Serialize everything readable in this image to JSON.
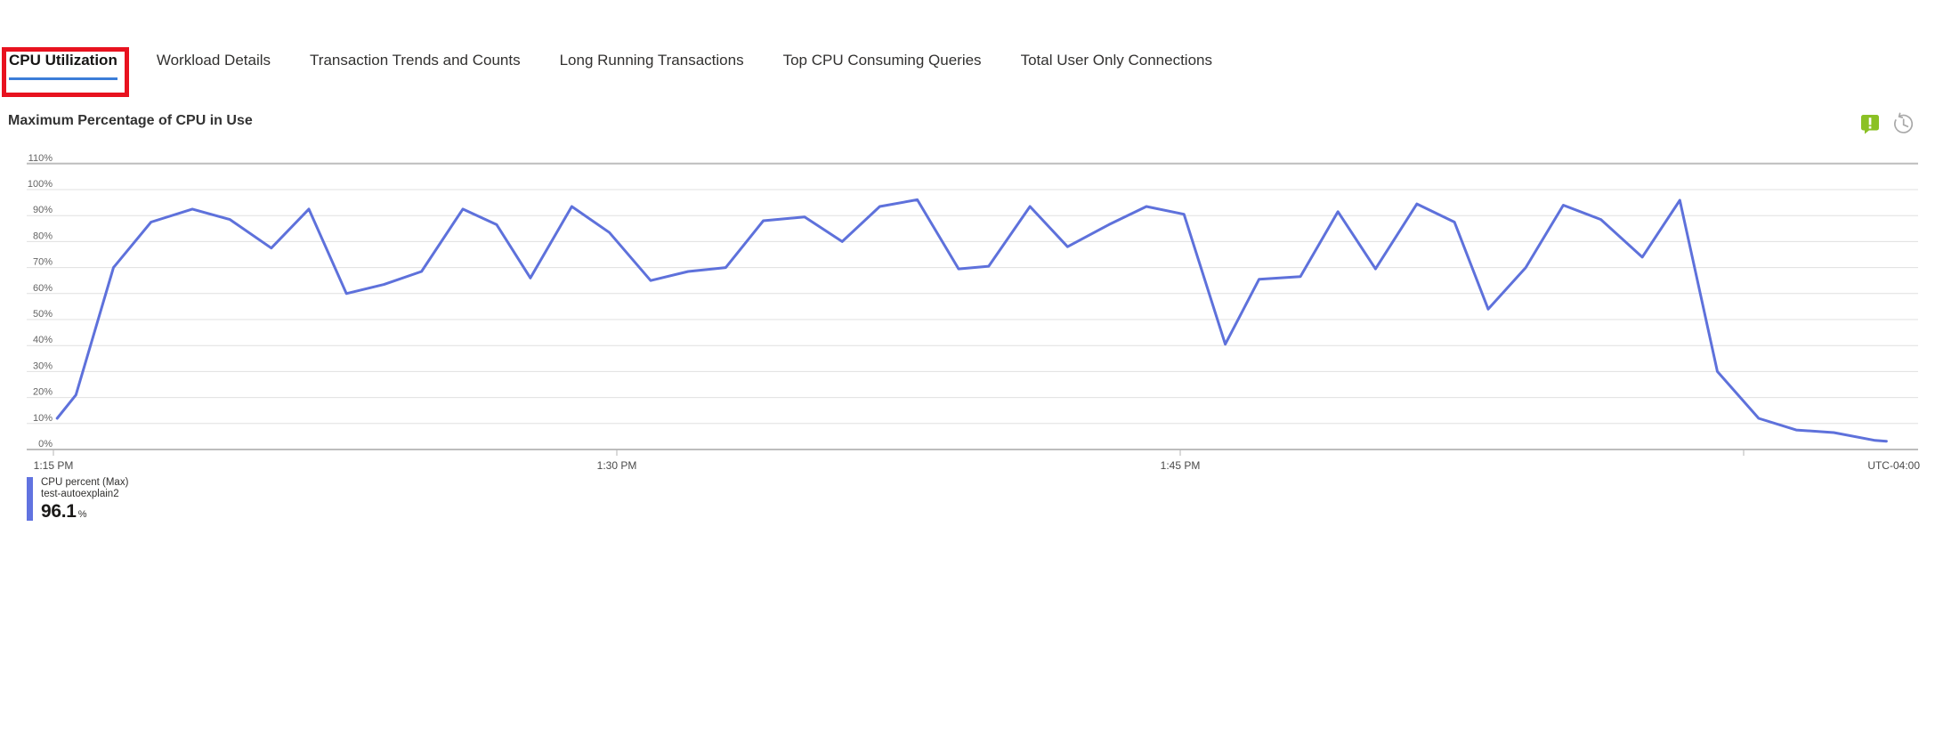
{
  "header": {
    "tabs": [
      {
        "label": "CPU Utilization",
        "selected": true
      },
      {
        "label": "Workload Details",
        "selected": false
      },
      {
        "label": "Transaction Trends and Counts",
        "selected": false
      },
      {
        "label": "Long Running Transactions",
        "selected": false
      },
      {
        "label": "Top CPU Consuming Queries",
        "selected": false
      },
      {
        "label": "Total User Only Connections",
        "selected": false
      }
    ],
    "selected_tab_underline_color": "#3b7dd8",
    "annotation_box_color": "#e8121f"
  },
  "chart": {
    "title": "Maximum Percentage of CPU in Use",
    "icons": [
      {
        "name": "feedback-icon",
        "color": "#8bc125"
      },
      {
        "name": "history-clock-icon",
        "color": "#a9a9a9"
      }
    ]
  },
  "legend": {
    "series_label": "CPU percent (Max)",
    "resource_label": "test-autoexplain2",
    "value": "96.1",
    "unit": "%",
    "swatch_color": "#6173e0"
  },
  "chart_data": {
    "type": "line",
    "title": "Maximum Percentage of CPU in Use",
    "xlabel": "",
    "ylabel": "",
    "ylim": [
      0,
      110
    ],
    "grid": true,
    "legend_position": "bottom-left",
    "y_ticks_percent": [
      110,
      100,
      90,
      80,
      70,
      60,
      50,
      40,
      30,
      20,
      10,
      0
    ],
    "x_ticks": [
      {
        "minutes": 0,
        "label": "1:15 PM"
      },
      {
        "minutes": 15,
        "label": "1:30 PM"
      },
      {
        "minutes": 30,
        "label": "1:45 PM"
      },
      {
        "minutes": 45,
        "label": ""
      }
    ],
    "timezone_label": "UTC-04:00",
    "series": [
      {
        "name": "CPU percent (Max)",
        "resource": "test-autoexplain2",
        "max_label": "96.1",
        "unit": "%",
        "color": "#5e71db",
        "x_unit": "minutes after 1:15 PM",
        "points": [
          [
            0.1,
            12
          ],
          [
            0.6,
            21
          ],
          [
            1.6,
            70
          ],
          [
            2.6,
            87.5
          ],
          [
            3.7,
            92.5
          ],
          [
            4.7,
            88.5
          ],
          [
            5.8,
            77.5
          ],
          [
            6.8,
            92.5
          ],
          [
            7.8,
            60
          ],
          [
            8.8,
            63.5
          ],
          [
            9.8,
            68.5
          ],
          [
            10.9,
            92.5
          ],
          [
            11.8,
            86.5
          ],
          [
            12.7,
            66
          ],
          [
            13.8,
            93.5
          ],
          [
            14.8,
            83.5
          ],
          [
            15.9,
            65
          ],
          [
            16.9,
            68.5
          ],
          [
            17.9,
            70
          ],
          [
            18.9,
            88
          ],
          [
            20,
            89.5
          ],
          [
            21,
            80
          ],
          [
            22,
            93.5
          ],
          [
            23,
            96.1
          ],
          [
            24.1,
            69.5
          ],
          [
            24.9,
            70.5
          ],
          [
            26,
            93.5
          ],
          [
            27,
            78
          ],
          [
            28.1,
            86.5
          ],
          [
            29.1,
            93.5
          ],
          [
            30.1,
            90.5
          ],
          [
            31.2,
            40.5
          ],
          [
            32.1,
            65.5
          ],
          [
            33.2,
            66.5
          ],
          [
            34.2,
            91.5
          ],
          [
            35.2,
            69.5
          ],
          [
            36.3,
            94.5
          ],
          [
            37.3,
            87.5
          ],
          [
            38.2,
            54
          ],
          [
            39.2,
            70
          ],
          [
            40.2,
            94
          ],
          [
            41.2,
            88.5
          ],
          [
            42.3,
            74
          ],
          [
            43.3,
            95.9
          ],
          [
            44.3,
            30
          ],
          [
            45.4,
            12
          ],
          [
            46.4,
            7.5
          ],
          [
            47.4,
            6.5
          ],
          [
            48.5,
            3.5
          ],
          [
            48.8,
            3.2
          ]
        ]
      }
    ]
  }
}
